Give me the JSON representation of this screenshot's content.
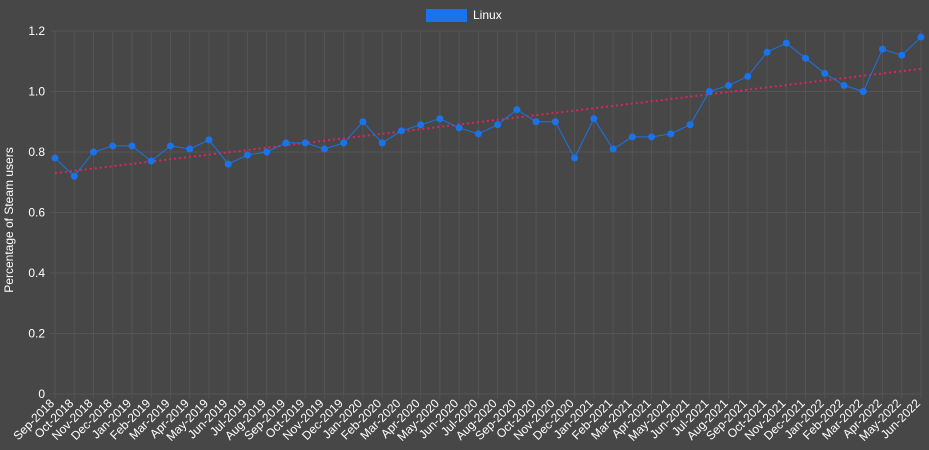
{
  "colors": {
    "background": "#474747",
    "grid": "#555555",
    "text": "#ffffff",
    "series": "#1a73e8",
    "trend": "#e0245e"
  },
  "chart_data": {
    "type": "line",
    "ylabel": "Percentage of Steam users",
    "ylim": [
      0,
      1.2
    ],
    "yticks": [
      0,
      0.2,
      0.4,
      0.6,
      0.8,
      1.0,
      1.2
    ],
    "ytick_labels": [
      "0",
      "0.2",
      "0.4",
      "0.6",
      "0.8",
      "1.0",
      "1.2"
    ],
    "grid": true,
    "legend_position": "top-center",
    "categories": [
      "Sep-2018",
      "Oct-2018",
      "Nov-2018",
      "Dec-2018",
      "Jan-2019",
      "Feb-2019",
      "Mar-2019",
      "Apr-2019",
      "May-2019",
      "Jun-2019",
      "Jul-2019",
      "Aug-2019",
      "Sep-2019",
      "Oct-2019",
      "Nov-2019",
      "Dec-2019",
      "Jan-2020",
      "Feb-2020",
      "Mar-2020",
      "Apr-2020",
      "May-2020",
      "Jun-2020",
      "Jul-2020",
      "Aug-2020",
      "Sep-2020",
      "Oct-2020",
      "Nov-2020",
      "Dec-2020",
      "Jan-2021",
      "Feb-2021",
      "Mar-2021",
      "Apr-2021",
      "May-2021",
      "Jun-2021",
      "Jul-2021",
      "Aug-2021",
      "Sep-2021",
      "Oct-2021",
      "Nov-2021",
      "Dec-2021",
      "Jan-2022",
      "Feb-2022",
      "Mar-2022",
      "Apr-2022",
      "May-2022",
      "Jun-2022"
    ],
    "series": [
      {
        "name": "Linux",
        "values": [
          0.78,
          0.72,
          0.8,
          0.82,
          0.82,
          0.77,
          0.82,
          0.81,
          0.84,
          0.76,
          0.79,
          0.8,
          0.83,
          0.83,
          0.81,
          0.83,
          0.9,
          0.83,
          0.87,
          0.89,
          0.91,
          0.88,
          0.86,
          0.89,
          0.94,
          0.9,
          0.9,
          0.78,
          0.91,
          0.81,
          0.85,
          0.85,
          0.86,
          0.89,
          1.0,
          1.02,
          1.05,
          1.13,
          1.16,
          1.11,
          1.06,
          1.02,
          1.0,
          1.14,
          1.12,
          1.18
        ]
      }
    ],
    "trendline": {
      "start": 0.73,
      "end": 1.075
    }
  }
}
